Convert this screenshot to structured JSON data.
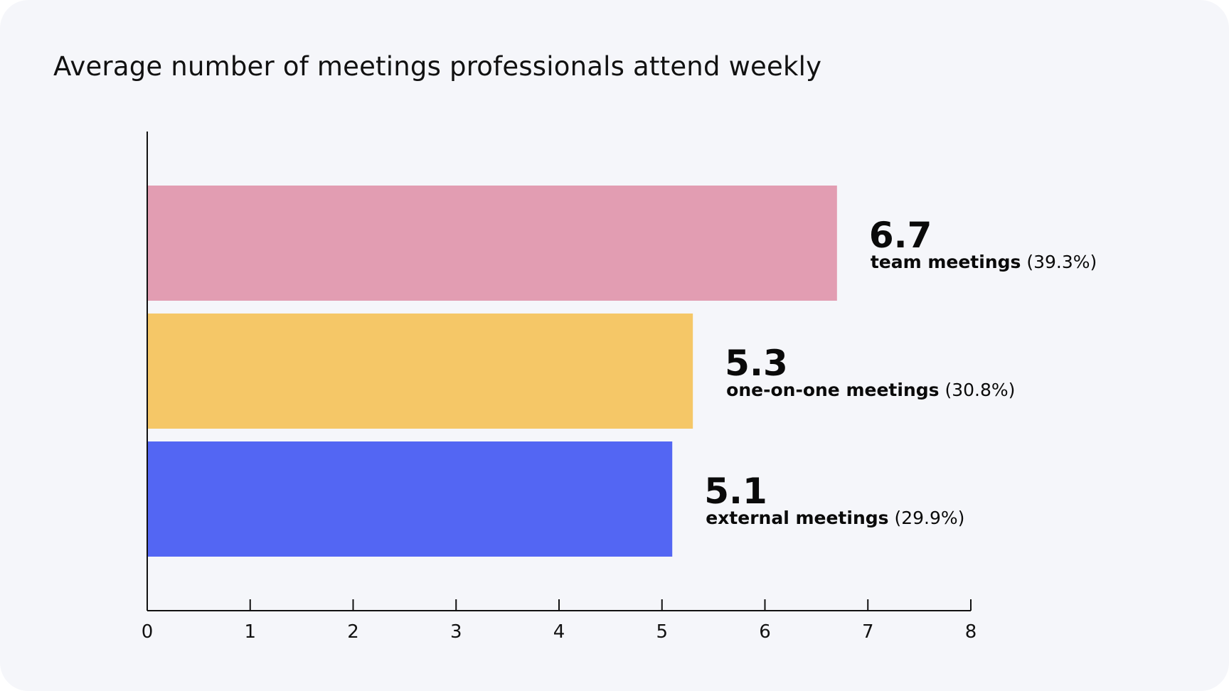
{
  "chart_data": {
    "type": "bar",
    "orientation": "horizontal",
    "title": "Average number of meetings professionals attend weekly",
    "xlabel": "",
    "ylabel": "",
    "xlim": [
      0,
      8
    ],
    "ticks": [
      "0",
      "1",
      "2",
      "3",
      "4",
      "5",
      "6",
      "7",
      "8"
    ],
    "grid": false,
    "categories": [
      "team meetings",
      "one-on-one meetings",
      "external meetings"
    ],
    "values": [
      6.7,
      5.3,
      5.1
    ],
    "value_labels": [
      "6.7",
      "5.3",
      "5.1"
    ],
    "shares": [
      "(39.3%)",
      "(30.8%)",
      "(29.9%)"
    ],
    "colors": [
      "#e29db2",
      "#f5c767",
      "#5366f3"
    ]
  }
}
